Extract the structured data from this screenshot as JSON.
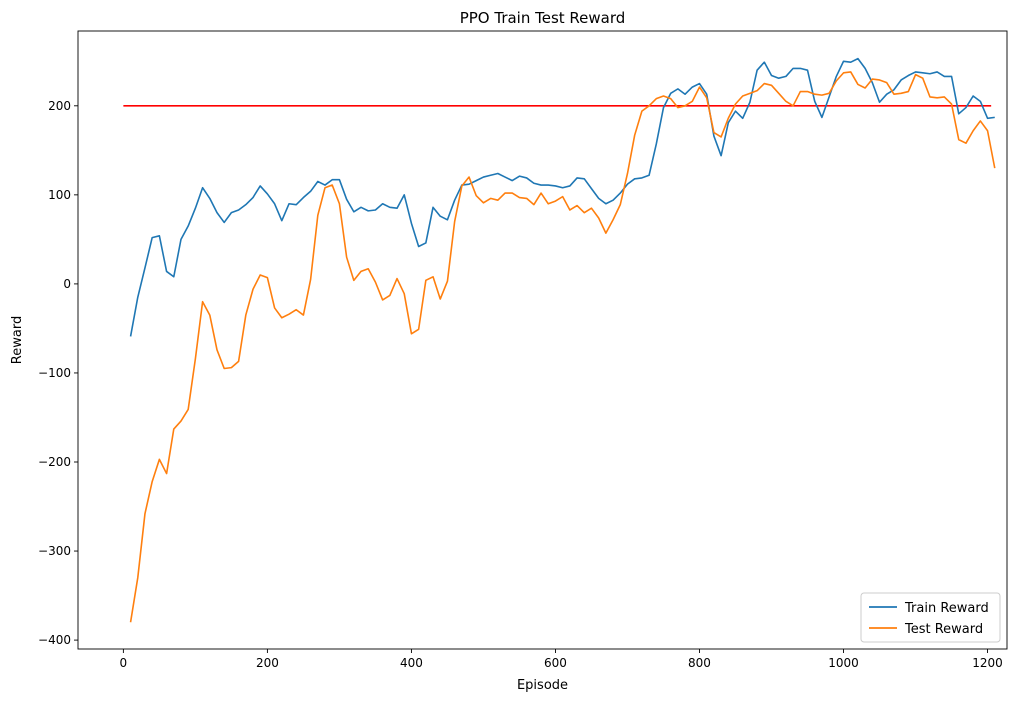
{
  "chart_data": {
    "type": "line",
    "title": "PPO Train Test Reward",
    "xlabel": "Episode",
    "ylabel": "Reward",
    "xlim": [
      -63,
      1227
    ],
    "ylim": [
      -410,
      284
    ],
    "x_ticks": [
      0,
      200,
      400,
      600,
      800,
      1000,
      1200
    ],
    "y_ticks": [
      -400,
      -300,
      -200,
      -100,
      0,
      100,
      200
    ],
    "x_tick_labels": [
      "0",
      "200",
      "400",
      "600",
      "800",
      "1000",
      "1200"
    ],
    "y_tick_labels": [
      "−400",
      "−300",
      "−200",
      "−100",
      "0",
      "100",
      "200"
    ],
    "grid": false,
    "legend_position": "lower-right",
    "reference_line": {
      "y": 200,
      "x_range": [
        0,
        1205
      ],
      "color": "#ff0000"
    },
    "series": [
      {
        "name": "Train Reward",
        "color": "#1f77b4",
        "x": [
          10,
          20,
          30,
          40,
          50,
          60,
          70,
          80,
          90,
          100,
          110,
          120,
          130,
          140,
          150,
          160,
          170,
          180,
          190,
          200,
          210,
          220,
          230,
          240,
          250,
          260,
          270,
          280,
          290,
          300,
          310,
          320,
          330,
          340,
          350,
          360,
          370,
          380,
          390,
          400,
          410,
          420,
          430,
          440,
          450,
          460,
          470,
          480,
          490,
          500,
          510,
          520,
          530,
          540,
          550,
          560,
          570,
          580,
          590,
          600,
          610,
          620,
          630,
          640,
          650,
          660,
          670,
          680,
          690,
          700,
          710,
          720,
          730,
          740,
          750,
          760,
          770,
          780,
          790,
          800,
          810,
          820,
          830,
          840,
          850,
          860,
          870,
          880,
          890,
          900,
          910,
          920,
          930,
          940,
          950,
          960,
          970,
          980,
          990,
          1000,
          1010,
          1020,
          1030,
          1040,
          1050,
          1060,
          1070,
          1080,
          1090,
          1100,
          1110,
          1120,
          1130,
          1140,
          1150,
          1160,
          1170,
          1180,
          1190,
          1200,
          1210
        ],
        "values": [
          -59,
          -15,
          18,
          52,
          54,
          14,
          8,
          50,
          65,
          85,
          108,
          96,
          80,
          69,
          80,
          83,
          89,
          97,
          110,
          101,
          90,
          71,
          90,
          89,
          97,
          104,
          115,
          111,
          117,
          117,
          95,
          81,
          86,
          82,
          83,
          90,
          86,
          85,
          100,
          68,
          42,
          46,
          86,
          76,
          72,
          94,
          111,
          112,
          116,
          120,
          122,
          124,
          120,
          116,
          121,
          119,
          113,
          111,
          111,
          110,
          108,
          110,
          119,
          118,
          107,
          96,
          90,
          94,
          102,
          112,
          118,
          119,
          122,
          157,
          198,
          214,
          219,
          213,
          221,
          225,
          213,
          166,
          144,
          181,
          194,
          186,
          204,
          240,
          249,
          234,
          231,
          233,
          242,
          242,
          240,
          205,
          187,
          210,
          233,
          250,
          249,
          253,
          242,
          226,
          204,
          213,
          218,
          229,
          234,
          238,
          237,
          236,
          238,
          233,
          233,
          191,
          198,
          211,
          205,
          186,
          187
        ]
      },
      {
        "name": "Test Reward",
        "color": "#ff7f0e",
        "x": [
          10,
          20,
          30,
          40,
          50,
          60,
          70,
          80,
          90,
          100,
          110,
          120,
          130,
          140,
          150,
          160,
          170,
          180,
          190,
          200,
          210,
          220,
          230,
          240,
          250,
          260,
          270,
          280,
          290,
          300,
          310,
          320,
          330,
          340,
          350,
          360,
          370,
          380,
          390,
          400,
          410,
          420,
          430,
          440,
          450,
          460,
          470,
          480,
          490,
          500,
          510,
          520,
          530,
          540,
          550,
          560,
          570,
          580,
          590,
          600,
          610,
          620,
          630,
          640,
          650,
          660,
          670,
          680,
          690,
          700,
          710,
          720,
          730,
          740,
          750,
          760,
          770,
          780,
          790,
          800,
          810,
          820,
          830,
          840,
          850,
          860,
          870,
          880,
          890,
          900,
          910,
          920,
          930,
          940,
          950,
          960,
          970,
          980,
          990,
          1000,
          1010,
          1020,
          1030,
          1040,
          1050,
          1060,
          1070,
          1080,
          1090,
          1100,
          1110,
          1120,
          1130,
          1140,
          1150,
          1160,
          1170,
          1180,
          1190,
          1200,
          1210
        ],
        "values": [
          -380,
          -330,
          -258,
          -222,
          -197,
          -213,
          -163,
          -154,
          -141,
          -84,
          -20,
          -35,
          -74,
          -95,
          -94,
          -87,
          -35,
          -6,
          10,
          7,
          -27,
          -38,
          -34,
          -29,
          -35,
          5,
          77,
          108,
          111,
          90,
          30,
          4,
          14,
          17,
          2,
          -18,
          -13,
          6,
          -11,
          -56,
          -51,
          4,
          8,
          -17,
          3,
          70,
          110,
          120,
          99,
          91,
          96,
          94,
          102,
          102,
          97,
          96,
          89,
          102,
          90,
          93,
          98,
          83,
          88,
          80,
          85,
          74,
          57,
          72,
          89,
          124,
          167,
          194,
          200,
          208,
          211,
          208,
          198,
          200,
          205,
          221,
          209,
          170,
          165,
          186,
          202,
          211,
          214,
          217,
          225,
          223,
          214,
          205,
          200,
          216,
          216,
          213,
          212,
          214,
          228,
          237,
          238,
          224,
          220,
          230,
          229,
          226,
          213,
          214,
          216,
          235,
          231,
          210,
          209,
          210,
          202,
          162,
          158,
          172,
          183,
          172,
          130
        ]
      }
    ]
  }
}
